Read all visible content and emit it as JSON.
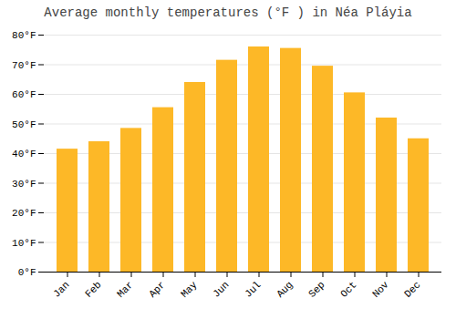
{
  "chart_data": {
    "type": "bar",
    "title": "Average monthly temperatures (°F ) in Néa Pláyia",
    "categories": [
      "Jan",
      "Feb",
      "Mar",
      "Apr",
      "May",
      "Jun",
      "Jul",
      "Aug",
      "Sep",
      "Oct",
      "Nov",
      "Dec"
    ],
    "values": [
      41.5,
      44.0,
      48.5,
      55.5,
      64.0,
      71.5,
      76.0,
      75.5,
      69.5,
      60.5,
      52.0,
      45.0
    ],
    "color": "#FDB827",
    "ylim": [
      0,
      80
    ],
    "yticks": [
      {
        "value": 0,
        "label": "0°F"
      },
      {
        "value": 10,
        "label": "10°F"
      },
      {
        "value": 20,
        "label": "20°F"
      },
      {
        "value": 30,
        "label": "30°F"
      },
      {
        "value": 40,
        "label": "40°F"
      },
      {
        "value": 50,
        "label": "50°F"
      },
      {
        "value": 60,
        "label": "60°F"
      },
      {
        "value": 70,
        "label": "70°F"
      },
      {
        "value": 80,
        "label": "80°F"
      }
    ],
    "grid": true
  }
}
